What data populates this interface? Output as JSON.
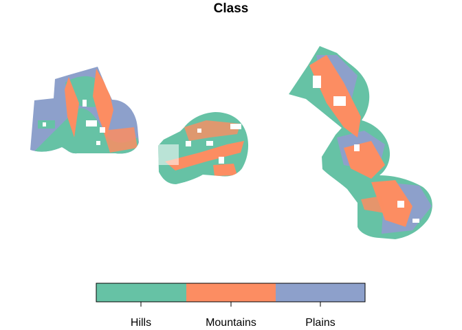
{
  "title": "Class",
  "legend": {
    "classes": [
      {
        "label": "Hills",
        "color": "#66C2A5"
      },
      {
        "label": "Mountains",
        "color": "#FC8D62"
      },
      {
        "label": "Plains",
        "color": "#8DA0CB"
      }
    ]
  },
  "map": {
    "regions": [
      "west-cluster",
      "central-cluster",
      "east-cluster"
    ],
    "gap_color": "#FFFFFF"
  }
}
